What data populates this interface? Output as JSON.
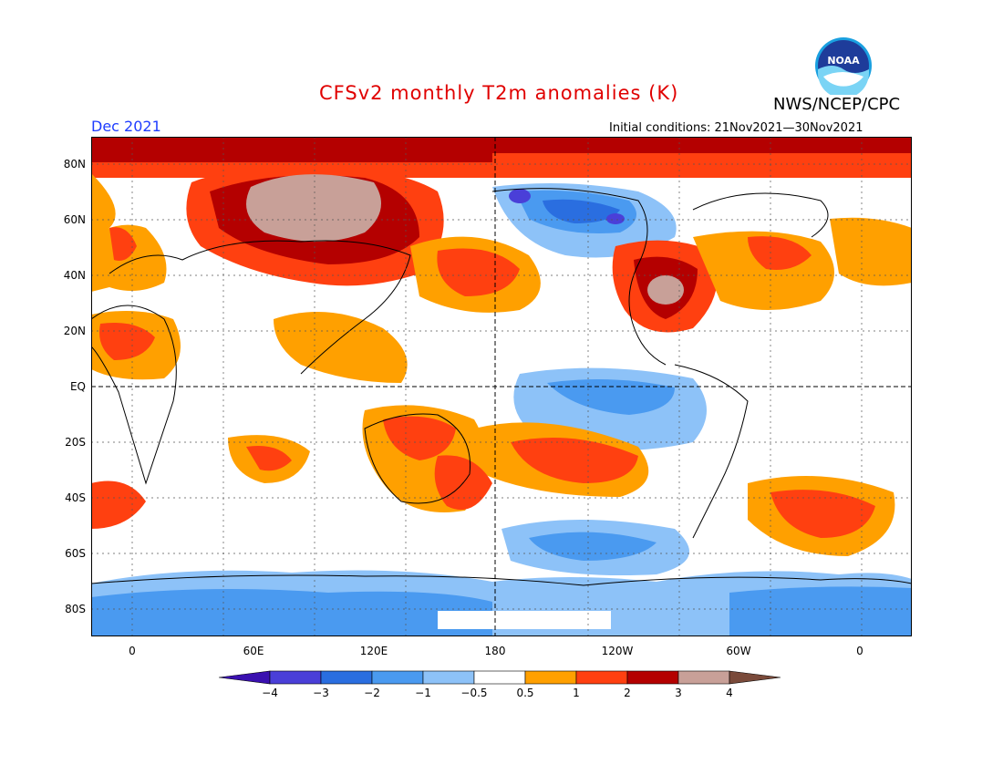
{
  "header": {
    "title": "CFSv2 monthly T2m anomalies (K)",
    "agency": "NWS/NCEP/CPC",
    "logo_text": "NOAA",
    "period": "Dec 2021",
    "initial_conditions": "Initial conditions: 21Nov2021—30Nov2021"
  },
  "axes": {
    "y_labels": [
      "80N",
      "60N",
      "40N",
      "20N",
      "EQ",
      "20S",
      "40S",
      "60S",
      "80S"
    ],
    "x_labels": [
      "0",
      "60E",
      "120E",
      "180",
      "120W",
      "60W",
      "0"
    ]
  },
  "legend": {
    "labels": [
      "−4",
      "−3",
      "−2",
      "−1",
      "−0.5",
      "0.5",
      "1",
      "2",
      "3",
      "4"
    ],
    "colors": [
      "#3a10b0",
      "#4a3fd8",
      "#2a6ee0",
      "#4a9af0",
      "#8dc2f8",
      "#ffffff",
      "#ffa000",
      "#ff4010",
      "#b40000",
      "#c8a098",
      "#7a4a3a"
    ]
  },
  "colors": {
    "title": "#e00000",
    "period": "#1e3cff",
    "warm1": "#ffa000",
    "warm2": "#ff4010",
    "warm3": "#b40000",
    "warm4": "#c8a098",
    "cool1": "#8dc2f8",
    "cool2": "#4a9af0",
    "cool3": "#2a6ee0",
    "cool4": "#4a3fd8"
  }
}
